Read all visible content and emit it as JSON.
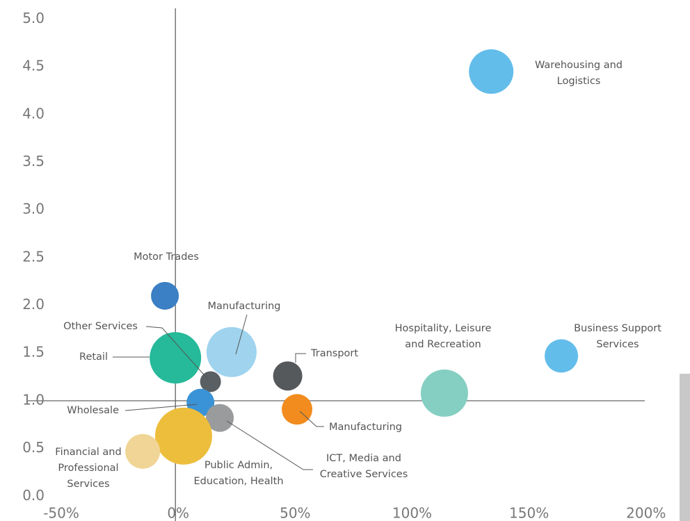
{
  "chart_data": {
    "type": "bubble",
    "xlim": [
      -75,
      220
    ],
    "ylim": [
      -0.26,
      5.2
    ],
    "xticks": [
      {
        "value": -50,
        "label": "-50%"
      },
      {
        "value": 0,
        "label": "0%"
      },
      {
        "value": 50,
        "label": "50%"
      },
      {
        "value": 100,
        "label": "100%"
      },
      {
        "value": 150,
        "label": "150%"
      },
      {
        "value": 200,
        "label": "200%"
      }
    ],
    "yticks": [
      {
        "value": 0,
        "label": "0.0"
      },
      0.5,
      {
        "value": 1,
        "label": "1.0"
      },
      1.5,
      {
        "value": 2,
        "label": "2.0"
      },
      2.5,
      {
        "value": 3,
        "label": "3.0"
      },
      3.5,
      {
        "value": 4,
        "label": "4.0"
      },
      4.5,
      {
        "value": 5,
        "label": "5.0"
      }
    ],
    "reference_y": 1,
    "points": [
      {
        "label": [
          "Warehousing and",
          "Logistics"
        ],
        "x": 135,
        "y": 4.45,
        "size": 32,
        "color": "#63bdea"
      },
      {
        "label": [
          "Motor Trades"
        ],
        "x": -4.5,
        "y": 2.1,
        "size": 20,
        "color": "#3b7fc4"
      },
      {
        "label": [
          "Retail"
        ],
        "x": 0,
        "y": 1.45,
        "size": 37,
        "color": "#26b99a"
      },
      {
        "label": [
          "Manufacturing"
        ],
        "x": 24,
        "y": 1.51,
        "size": 36,
        "color": "#9fd3ee"
      },
      {
        "label": [
          "Other Services"
        ],
        "x": 15,
        "y": 1.2,
        "size": 15,
        "color": "#5a5f63"
      },
      {
        "label": [
          "Transport"
        ],
        "x": 48,
        "y": 1.26,
        "size": 21,
        "color": "#55595c"
      },
      {
        "label": [
          "Hospitality, Leisure",
          "and Recreation"
        ],
        "x": 115,
        "y": 1.08,
        "size": 34,
        "color": "#84cfc2"
      },
      {
        "label": [
          "Business Support",
          "Services"
        ],
        "x": 165,
        "y": 1.47,
        "size": 24,
        "color": "#63bdea"
      },
      {
        "label": [
          "Wholesale"
        ],
        "x": 10.7,
        "y": 0.98,
        "size": 20,
        "color": "#3a93d6"
      },
      {
        "label": [
          "Manufacturing"
        ],
        "x": 52,
        "y": 0.91,
        "size": 22,
        "color": "#f28c1e"
      },
      {
        "label": [
          "ICT, Media and",
          "Creative Services"
        ],
        "x": 19,
        "y": 0.82,
        "size": 20,
        "color": "#999b9c"
      },
      {
        "label": [
          "Public Admin,",
          "Education, Health"
        ],
        "x": 3.5,
        "y": 0.63,
        "size": 41,
        "color": "#edbd3c"
      },
      {
        "label": [
          "Financial and",
          "Professional",
          "Services"
        ],
        "x": -14,
        "y": 0.47,
        "size": 25,
        "color": "#f0d596"
      }
    ]
  }
}
